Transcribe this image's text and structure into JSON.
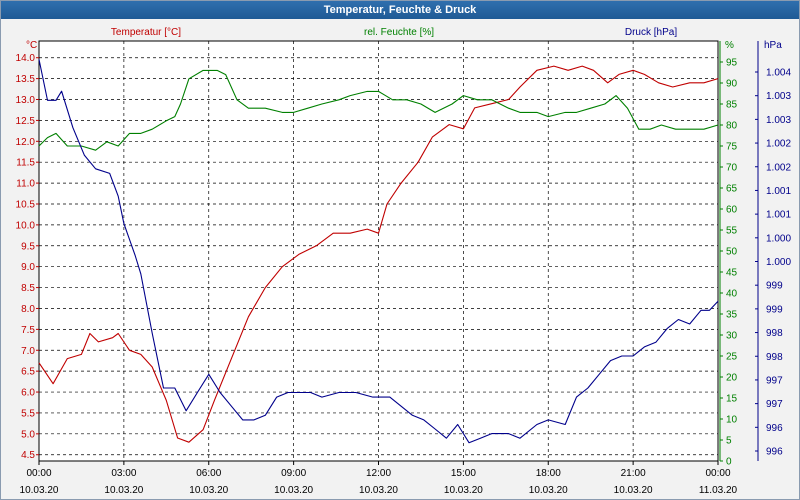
{
  "window": {
    "title": "Temperatur, Feuchte & Druck"
  },
  "colors": {
    "temperature": "#c00000",
    "humidity": "#008000",
    "pressure": "#00008b"
  },
  "chart_data": {
    "type": "line",
    "title": "Temperatur, Feuchte & Druck",
    "grid": true,
    "x_ticks": [
      {
        "time": "00:00",
        "date": "10.03.20"
      },
      {
        "time": "03:00",
        "date": "10.03.20"
      },
      {
        "time": "06:00",
        "date": "10.03.20"
      },
      {
        "time": "09:00",
        "date": "10.03.20"
      },
      {
        "time": "12:00",
        "date": "10.03.20"
      },
      {
        "time": "15:00",
        "date": "10.03.20"
      },
      {
        "time": "18:00",
        "date": "10.03.20"
      },
      {
        "time": "21:00",
        "date": "10.03.20"
      },
      {
        "time": "00:00",
        "date": "11.03.20"
      }
    ],
    "x_range": [
      0,
      24
    ],
    "axes": {
      "temperature": {
        "label": "Temperatur [°C]",
        "unit": "°C",
        "ylim": [
          4.35,
          14.4
        ],
        "ticks": [
          "4.5",
          "5.0",
          "5.5",
          "6.0",
          "6.5",
          "7.0",
          "7.5",
          "8.0",
          "8.5",
          "9.0",
          "9.5",
          "10.0",
          "10.5",
          "11.0",
          "11.5",
          "12.0",
          "12.5",
          "13.0",
          "13.5",
          "14.0"
        ]
      },
      "humidity": {
        "label": "rel. Feuchte [%]",
        "unit": "%",
        "ylim": [
          0,
          100
        ],
        "ticks": [
          "0",
          "5",
          "10",
          "15",
          "20",
          "25",
          "30",
          "35",
          "40",
          "45",
          "50",
          "55",
          "60",
          "65",
          "70",
          "75",
          "80",
          "85",
          "90",
          "95"
        ]
      },
      "pressure": {
        "label": "Druck [hPa]",
        "unit": "hPa",
        "ylim": [
          995.5,
          1004.7
        ],
        "ticks": [
          "996",
          "996",
          "997",
          "997",
          "998",
          "998",
          "999",
          "999",
          "1.000",
          "1.000",
          "1.001",
          "1.001",
          "1.002",
          "1.002",
          "1.003",
          "1.003",
          "1.004"
        ]
      }
    },
    "series": [
      {
        "name": "Temperatur [°C]",
        "axis": "temperature",
        "points": [
          [
            0,
            6.7
          ],
          [
            0.5,
            6.2
          ],
          [
            1.0,
            6.8
          ],
          [
            1.5,
            6.9
          ],
          [
            1.8,
            7.4
          ],
          [
            2.1,
            7.2
          ],
          [
            2.6,
            7.3
          ],
          [
            2.8,
            7.4
          ],
          [
            3.2,
            7.0
          ],
          [
            3.6,
            6.9
          ],
          [
            4.0,
            6.6
          ],
          [
            4.5,
            5.8
          ],
          [
            4.9,
            4.9
          ],
          [
            5.3,
            4.8
          ],
          [
            5.8,
            5.1
          ],
          [
            6.2,
            5.8
          ],
          [
            6.8,
            6.8
          ],
          [
            7.4,
            7.8
          ],
          [
            8.0,
            8.5
          ],
          [
            8.6,
            9.0
          ],
          [
            9.2,
            9.3
          ],
          [
            9.8,
            9.5
          ],
          [
            10.4,
            9.8
          ],
          [
            11.0,
            9.8
          ],
          [
            11.6,
            9.9
          ],
          [
            12.0,
            9.8
          ],
          [
            12.3,
            10.5
          ],
          [
            12.8,
            11.0
          ],
          [
            13.4,
            11.5
          ],
          [
            13.9,
            12.1
          ],
          [
            14.5,
            12.4
          ],
          [
            15.0,
            12.3
          ],
          [
            15.4,
            12.8
          ],
          [
            16.0,
            12.9
          ],
          [
            16.6,
            13.0
          ],
          [
            17.0,
            13.3
          ],
          [
            17.6,
            13.7
          ],
          [
            18.2,
            13.8
          ],
          [
            18.7,
            13.7
          ],
          [
            19.2,
            13.8
          ],
          [
            19.6,
            13.7
          ],
          [
            20.1,
            13.4
          ],
          [
            20.5,
            13.6
          ],
          [
            21.0,
            13.7
          ],
          [
            21.4,
            13.6
          ],
          [
            21.9,
            13.4
          ],
          [
            22.4,
            13.3
          ],
          [
            23.0,
            13.4
          ],
          [
            23.5,
            13.4
          ],
          [
            24.0,
            13.5
          ]
        ]
      },
      {
        "name": "rel. Feuchte [%]",
        "axis": "humidity",
        "points": [
          [
            0,
            75
          ],
          [
            0.3,
            77
          ],
          [
            0.6,
            78
          ],
          [
            1.0,
            75
          ],
          [
            1.5,
            75
          ],
          [
            2.0,
            74
          ],
          [
            2.4,
            76
          ],
          [
            2.8,
            75
          ],
          [
            3.2,
            78
          ],
          [
            3.6,
            78
          ],
          [
            4.0,
            79
          ],
          [
            4.5,
            81
          ],
          [
            4.8,
            82
          ],
          [
            5.0,
            85
          ],
          [
            5.3,
            91
          ],
          [
            5.8,
            93
          ],
          [
            6.3,
            93
          ],
          [
            6.6,
            92
          ],
          [
            7.0,
            86
          ],
          [
            7.4,
            84
          ],
          [
            8.0,
            84
          ],
          [
            8.6,
            83
          ],
          [
            9.0,
            83
          ],
          [
            9.5,
            84
          ],
          [
            10.0,
            85
          ],
          [
            10.6,
            86
          ],
          [
            11.0,
            87
          ],
          [
            11.6,
            88
          ],
          [
            12.0,
            88
          ],
          [
            12.5,
            86
          ],
          [
            13.0,
            86
          ],
          [
            13.5,
            85
          ],
          [
            14.0,
            83
          ],
          [
            14.6,
            85
          ],
          [
            15.0,
            87
          ],
          [
            15.5,
            86
          ],
          [
            16.0,
            86
          ],
          [
            16.6,
            84
          ],
          [
            17.0,
            83
          ],
          [
            17.6,
            83
          ],
          [
            18.0,
            82
          ],
          [
            18.6,
            83
          ],
          [
            19.0,
            83
          ],
          [
            19.5,
            84
          ],
          [
            20.0,
            85
          ],
          [
            20.4,
            87
          ],
          [
            20.8,
            84
          ],
          [
            21.2,
            79
          ],
          [
            21.6,
            79
          ],
          [
            22.0,
            80
          ],
          [
            22.5,
            79
          ],
          [
            23.0,
            79
          ],
          [
            23.5,
            79
          ],
          [
            24.0,
            80
          ]
        ]
      },
      {
        "name": "Druck [hPa]",
        "axis": "pressure",
        "points": [
          [
            0,
            1004.3
          ],
          [
            0.3,
            1003.4
          ],
          [
            0.6,
            1003.4
          ],
          [
            0.8,
            1003.6
          ],
          [
            1.2,
            1002.8
          ],
          [
            1.6,
            1002.2
          ],
          [
            2.0,
            1001.9
          ],
          [
            2.5,
            1001.8
          ],
          [
            2.8,
            1001.3
          ],
          [
            3.0,
            1000.7
          ],
          [
            3.4,
            1000.0
          ],
          [
            3.6,
            999.6
          ],
          [
            4.0,
            998.3
          ],
          [
            4.4,
            997.1
          ],
          [
            4.8,
            997.1
          ],
          [
            5.2,
            996.6
          ],
          [
            5.6,
            997.0
          ],
          [
            6.0,
            997.4
          ],
          [
            6.4,
            997.0
          ],
          [
            6.8,
            996.7
          ],
          [
            7.2,
            996.4
          ],
          [
            7.6,
            996.4
          ],
          [
            8.0,
            996.5
          ],
          [
            8.4,
            996.9
          ],
          [
            8.8,
            997.0
          ],
          [
            9.2,
            997.0
          ],
          [
            9.6,
            997.0
          ],
          [
            10.0,
            996.9
          ],
          [
            10.6,
            997.0
          ],
          [
            11.2,
            997.0
          ],
          [
            11.8,
            996.9
          ],
          [
            12.4,
            996.9
          ],
          [
            12.8,
            996.7
          ],
          [
            13.2,
            996.5
          ],
          [
            13.6,
            996.4
          ],
          [
            14.0,
            996.2
          ],
          [
            14.4,
            996.0
          ],
          [
            14.8,
            996.3
          ],
          [
            15.2,
            995.9
          ],
          [
            15.6,
            996.0
          ],
          [
            16.0,
            996.1
          ],
          [
            16.6,
            996.1
          ],
          [
            17.0,
            996.0
          ],
          [
            17.6,
            996.3
          ],
          [
            18.0,
            996.4
          ],
          [
            18.6,
            996.3
          ],
          [
            19.0,
            996.9
          ],
          [
            19.4,
            997.1
          ],
          [
            19.8,
            997.4
          ],
          [
            20.2,
            997.7
          ],
          [
            20.6,
            997.8
          ],
          [
            21.0,
            997.8
          ],
          [
            21.4,
            998.0
          ],
          [
            21.8,
            998.1
          ],
          [
            22.2,
            998.4
          ],
          [
            22.6,
            998.6
          ],
          [
            23.0,
            998.5
          ],
          [
            23.4,
            998.8
          ],
          [
            23.7,
            998.8
          ],
          [
            24.0,
            999.0
          ]
        ]
      }
    ]
  }
}
